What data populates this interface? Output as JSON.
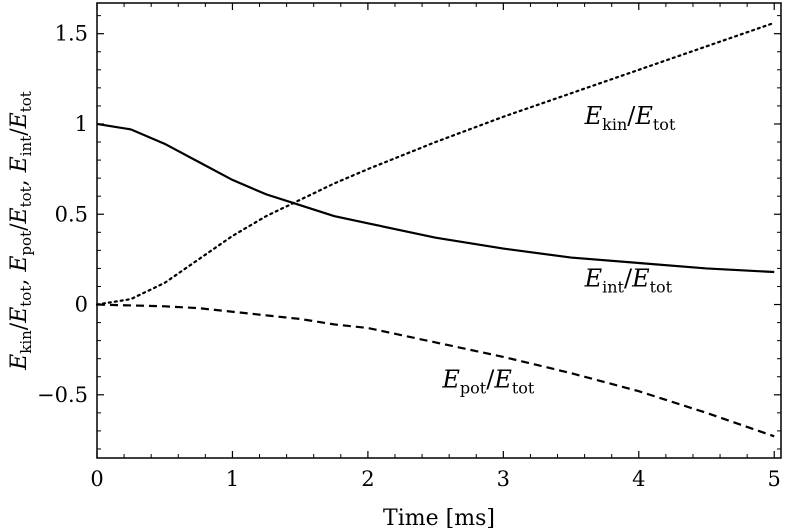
{
  "chart_data": {
    "type": "line",
    "xlabel": "Time [ms]",
    "ylabel": "E_kin/E_tot, E_pot/E_tot, E_int/E_tot",
    "xlim": [
      0,
      5.05
    ],
    "ylim": [
      -0.85,
      1.67
    ],
    "xticks": [
      0,
      1,
      2,
      3,
      4,
      5
    ],
    "yticks": [
      -0.5,
      0,
      0.5,
      1,
      1.5
    ],
    "x_tick_labels": [
      "0",
      "1",
      "2",
      "3",
      "4",
      "5"
    ],
    "y_tick_labels": [
      "−0.5",
      "0",
      "0.5",
      "1",
      "1.5"
    ],
    "grid": false,
    "series": [
      {
        "name": "E_kin/E_tot",
        "style": "dotted",
        "color": "#000000",
        "x": [
          0,
          0.25,
          0.5,
          0.75,
          1,
          1.25,
          1.5,
          1.75,
          2,
          2.5,
          3,
          3.5,
          4,
          4.5,
          5
        ],
        "y": [
          0,
          0.03,
          0.12,
          0.25,
          0.38,
          0.49,
          0.58,
          0.67,
          0.75,
          0.9,
          1.04,
          1.17,
          1.3,
          1.43,
          1.56
        ]
      },
      {
        "name": "E_int/E_tot",
        "style": "solid",
        "color": "#000000",
        "x": [
          0,
          0.25,
          0.5,
          0.75,
          1,
          1.25,
          1.5,
          1.75,
          2,
          2.5,
          3,
          3.5,
          4,
          4.5,
          5
        ],
        "y": [
          1.0,
          0.97,
          0.89,
          0.79,
          0.69,
          0.61,
          0.55,
          0.49,
          0.45,
          0.37,
          0.31,
          0.26,
          0.23,
          0.2,
          0.18
        ]
      },
      {
        "name": "E_pot/E_tot",
        "style": "dashed",
        "color": "#000000",
        "x": [
          0,
          0.25,
          0.5,
          0.75,
          1,
          1.25,
          1.5,
          1.75,
          2,
          2.5,
          3,
          3.5,
          4,
          4.5,
          5
        ],
        "y": [
          0,
          -0.005,
          -0.01,
          -0.02,
          -0.04,
          -0.06,
          -0.08,
          -0.11,
          -0.13,
          -0.21,
          -0.29,
          -0.38,
          -0.48,
          -0.6,
          -0.73
        ]
      }
    ],
    "annotations": [
      {
        "base": "E",
        "sub": "kin",
        "den_base": "E",
        "den_sub": "tot",
        "x": 3.6,
        "y": 1.0
      },
      {
        "base": "E",
        "sub": "int",
        "den_base": "E",
        "den_sub": "tot",
        "x": 3.6,
        "y": 0.1
      },
      {
        "base": "E",
        "sub": "pot",
        "den_base": "E",
        "den_sub": "tot",
        "x": 2.55,
        "y": -0.46
      }
    ]
  }
}
